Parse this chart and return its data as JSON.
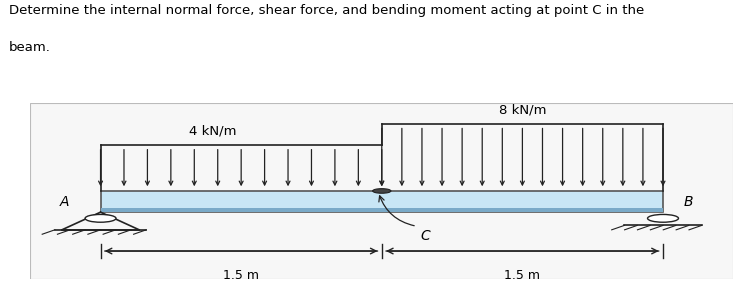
{
  "title_line1": "Determine the internal normal force, shear force, and bending moment acting at point C in the",
  "title_line2": "beam.",
  "load1_label": "4 kN/m",
  "load2_label": "8 kN/m",
  "label_A": "A",
  "label_B": "B",
  "label_C": "C",
  "dim1": "1.5 m",
  "dim2": "1.5 m",
  "beam_color_top": "#c8e6f5",
  "beam_color_bot": "#8bbdd9",
  "beam_edge_color": "#555555",
  "arrow_color": "#222222",
  "background_color": "#ffffff",
  "box_facecolor": "#f7f7f7",
  "box_edgecolor": "#bbbbbb",
  "title_fontsize": 9.5,
  "label_fontsize": 9.5,
  "dim_fontsize": 9.0
}
